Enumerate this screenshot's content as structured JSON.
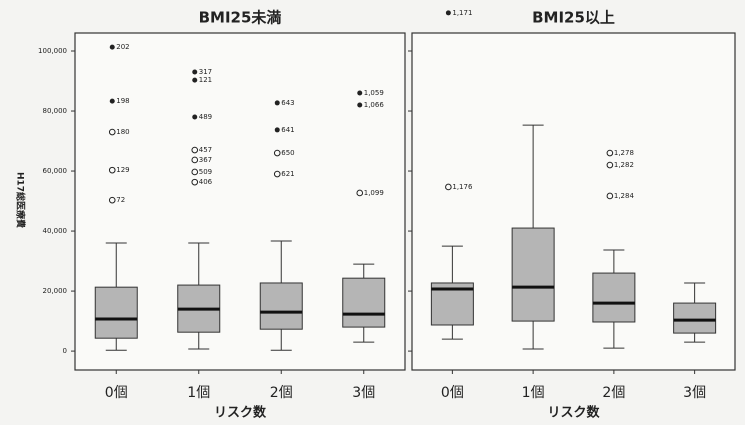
{
  "chart_data": [
    {
      "type": "box",
      "title": "BMI25未満",
      "xlabel": "リスク数",
      "ylabel": "H17総医療費",
      "categories": [
        "0個",
        "1個",
        "2個",
        "3個"
      ],
      "ylim": [
        -6300,
        106000
      ],
      "yticks": [
        0,
        {
          "value": 20000,
          "label": "20,000"
        },
        {
          "value": 40000,
          "label": "40,000"
        },
        {
          "value": 60000,
          "label": "60,000"
        },
        {
          "value": 80000,
          "label": "80,000"
        },
        {
          "value": 100000,
          "label": "100,000"
        }
      ],
      "tick_labels": true,
      "box_color": "#b5b5b5",
      "boxes": [
        {
          "whisker_low": 300,
          "q1": 4300,
          "median": 10700,
          "q3": 21300,
          "whisker_high": 36000,
          "outliers": [
            {
              "value": 101300,
              "id": "202",
              "extreme": true
            },
            {
              "value": 83300,
              "id": "198",
              "extreme": true
            },
            {
              "value": 73000,
              "id": "180",
              "extreme": false
            },
            {
              "value": 60300,
              "id": "129",
              "extreme": false
            },
            {
              "value": 50300,
              "id": "72",
              "extreme": false
            }
          ]
        },
        {
          "whisker_low": 700,
          "q1": 6300,
          "median": 14000,
          "q3": 22000,
          "whisker_high": 36000,
          "outliers": [
            {
              "value": 93000,
              "id": "317",
              "extreme": true
            },
            {
              "value": 90300,
              "id": "121",
              "extreme": true
            },
            {
              "value": 78000,
              "id": "489",
              "extreme": true
            },
            {
              "value": 67000,
              "id": "457",
              "extreme": false
            },
            {
              "value": 63700,
              "id": "367",
              "extreme": false
            },
            {
              "value": 59700,
              "id": "509",
              "extreme": false
            },
            {
              "value": 56300,
              "id": "406",
              "extreme": false
            }
          ]
        },
        {
          "whisker_low": 300,
          "q1": 7300,
          "median": 13000,
          "q3": 22700,
          "whisker_high": 36700,
          "outliers": [
            {
              "value": 82700,
              "id": "643",
              "extreme": true
            },
            {
              "value": 73700,
              "id": "641",
              "extreme": true
            },
            {
              "value": 66000,
              "id": "650",
              "extreme": false
            },
            {
              "value": 59000,
              "id": "621",
              "extreme": false
            }
          ]
        },
        {
          "whisker_low": 3000,
          "q1": 8000,
          "median": 12300,
          "q3": 24300,
          "whisker_high": 29000,
          "outliers": [
            {
              "value": 86000,
              "id": "1,059",
              "extreme": true
            },
            {
              "value": 82000,
              "id": "1,066",
              "extreme": true
            },
            {
              "value": 52700,
              "id": "1,099",
              "extreme": false
            }
          ]
        }
      ]
    },
    {
      "type": "box",
      "title": "BMI25以上",
      "xlabel": "リスク数",
      "categories": [
        "0個",
        "1個",
        "2個",
        "3個"
      ],
      "ylim": [
        -6300,
        106000
      ],
      "yticks": [
        0,
        20000,
        40000,
        60000,
        80000,
        100000
      ],
      "tick_labels": false,
      "box_color": "#b5b5b5",
      "boxes": [
        {
          "whisker_low": 4000,
          "q1": 8700,
          "median": 20700,
          "q3": 22700,
          "whisker_high": 35000,
          "outliers": [
            {
              "value": 112700,
              "id": "1,171",
              "extreme": true
            },
            {
              "value": 54700,
              "id": "1,176",
              "extreme": false
            }
          ]
        },
        {
          "whisker_low": 700,
          "q1": 10000,
          "median": 21300,
          "q3": 41000,
          "whisker_high": 75300,
          "outliers": []
        },
        {
          "whisker_low": 1000,
          "q1": 9700,
          "median": 16000,
          "q3": 26000,
          "whisker_high": 33700,
          "outliers": [
            {
              "value": 66000,
              "id": "1,278",
              "extreme": false
            },
            {
              "value": 62000,
              "id": "1,282",
              "extreme": false
            },
            {
              "value": 51700,
              "id": "1,284",
              "extreme": false
            }
          ]
        },
        {
          "whisker_low": 3000,
          "q1": 6000,
          "median": 10300,
          "q3": 16000,
          "whisker_high": 22700,
          "outliers": []
        }
      ]
    }
  ]
}
